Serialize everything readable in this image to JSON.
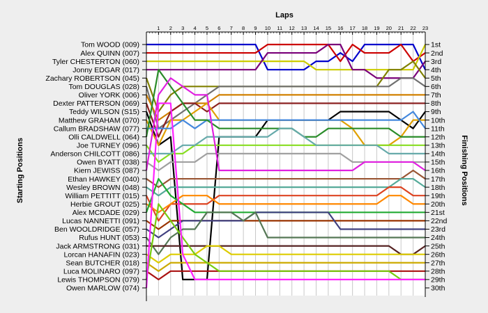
{
  "chart_data": {
    "type": "line",
    "title": "",
    "xlabel": "Laps",
    "ylabel_left": "Starting Positions",
    "ylabel_right": "Finishing Positions",
    "laps": [
      1,
      2,
      3,
      4,
      5,
      6,
      7,
      8,
      9,
      10,
      11,
      12,
      13,
      14,
      15,
      16,
      17,
      18,
      19,
      20,
      21,
      22,
      23
    ],
    "drivers": [
      "Tom WOOD (009)",
      "Alex QUINN (007)",
      "Tyler CHESTERTON (060)",
      "Jonny EDGAR (017)",
      "Zachary ROBERTSON (045)",
      "Tom DOUGLAS (028)",
      "Oliver YORK (006)",
      "Dexter PATTERSON (069)",
      "Teddy WILSON (S15)",
      "Matthew GRAHAM (070)",
      "Callum BRADSHAW (077)",
      "Olli CALDWELL (064)",
      "Joe TURNEY (096)",
      "Anderson CHILCOTT (086)",
      "Owen BYATT (038)",
      "Kiern JEWISS (087)",
      "Ethan HAWKEY (040)",
      "Wesley BROWN (048)",
      "William PETTITT (015)",
      "Herbie GROUT (025)",
      "Alex MCDADE (029)",
      "Lucas NANNETTI (091)",
      "Ben WOOLDRIDGE (057)",
      "Rufus HUNT (053)",
      "Jack ARMSTRONG (031)",
      "Lorcan HANAFIN (023)",
      "Sean BUTCHER (018)",
      "Luca MOLINARO (097)",
      "Lewis THOMPSON (079)",
      "Owen MARLOW (074)"
    ],
    "finishing_labels": [
      "1st",
      "2nd",
      "3rd",
      "4th",
      "5th",
      "6th",
      "7th",
      "8th",
      "9th",
      "10th",
      "11th",
      "12th",
      "13th",
      "14th",
      "15th",
      "16th",
      "17th",
      "18th",
      "19th",
      "20th",
      "21st",
      "22nd",
      "23rd",
      "24th",
      "25th",
      "26th",
      "27th",
      "28th",
      "29th",
      "30th"
    ],
    "series": [
      {
        "color": "#0000cc",
        "positions": [
          1,
          1,
          1,
          1,
          1,
          1,
          1,
          1,
          1,
          4,
          4,
          4,
          4,
          3,
          3,
          2,
          3,
          1,
          1,
          1,
          1,
          1,
          4
        ]
      },
      {
        "color": "#cc0000",
        "positions": [
          2,
          2,
          2,
          2,
          2,
          2,
          2,
          2,
          2,
          1,
          1,
          1,
          1,
          1,
          1,
          3,
          1,
          2,
          2,
          2,
          1,
          3,
          2
        ]
      },
      {
        "color": "#cccc00",
        "positions": [
          3,
          3,
          3,
          3,
          3,
          3,
          3,
          3,
          3,
          3,
          3,
          3,
          3,
          4,
          4,
          4,
          4,
          4,
          4,
          4,
          4,
          4,
          1
        ]
      },
      {
        "color": "#7a007a",
        "positions": [
          4,
          4,
          4,
          4,
          4,
          4,
          4,
          4,
          4,
          2,
          2,
          2,
          2,
          2,
          1,
          1,
          4,
          4,
          5,
          5,
          5,
          5,
          3
        ]
      },
      {
        "color": "#808000",
        "positions": [
          9,
          7,
          6,
          6,
          6,
          6,
          6,
          6,
          6,
          6,
          6,
          6,
          6,
          6,
          6,
          6,
          6,
          6,
          6,
          4,
          4,
          3,
          5
        ]
      },
      {
        "color": "#707070",
        "positions": [
          11,
          10,
          9,
          8,
          7,
          6,
          6,
          6,
          6,
          6,
          6,
          6,
          6,
          6,
          6,
          6,
          6,
          6,
          6,
          6,
          5,
          5,
          6
        ]
      },
      {
        "color": "#d08000",
        "positions": [
          10,
          9,
          8,
          8,
          8,
          7,
          7,
          7,
          7,
          7,
          7,
          7,
          7,
          7,
          7,
          7,
          7,
          7,
          7,
          7,
          7,
          7,
          7
        ]
      },
      {
        "color": "#8b2020",
        "positions": [
          12,
          9,
          8,
          8,
          9,
          8,
          8,
          8,
          8,
          8,
          8,
          8,
          8,
          8,
          8,
          8,
          8,
          8,
          8,
          8,
          8,
          8,
          8
        ]
      },
      {
        "color": "#000000",
        "positions": [
          13,
          12,
          29,
          29,
          29,
          12,
          12,
          12,
          12,
          10,
          10,
          10,
          10,
          10,
          10,
          9,
          9,
          9,
          9,
          9,
          10,
          11,
          9
        ]
      },
      {
        "color": "#e0a000",
        "positions": [
          13,
          10,
          10,
          9,
          8,
          10,
          10,
          10,
          10,
          10,
          10,
          10,
          10,
          10,
          10,
          10,
          11,
          13,
          13,
          13,
          12,
          10,
          10
        ]
      },
      {
        "color": "#4488dd",
        "positions": [
          11,
          11,
          10,
          11,
          10,
          10,
          10,
          10,
          10,
          10,
          10,
          10,
          10,
          10,
          10,
          10,
          10,
          10,
          10,
          10,
          10,
          9,
          11
        ]
      },
      {
        "color": "#2a8c2a",
        "positions": [
          4,
          6,
          8,
          10,
          10,
          11,
          11,
          11,
          11,
          11,
          11,
          11,
          12,
          12,
          11,
          11,
          11,
          11,
          11,
          11,
          12,
          12,
          12
        ]
      },
      {
        "color": "#88dd22",
        "positions": [
          15,
          14,
          14,
          13,
          13,
          13,
          13,
          13,
          13,
          13,
          13,
          13,
          13,
          13,
          13,
          13,
          13,
          13,
          13,
          13,
          13,
          13,
          13
        ]
      },
      {
        "color": "#66aaaa",
        "positions": [
          14,
          14,
          13,
          13,
          12,
          12,
          12,
          12,
          12,
          12,
          11,
          11,
          12,
          13,
          13,
          13,
          13,
          13,
          13,
          14,
          14,
          14,
          14
        ]
      },
      {
        "color": "#a0a0a0",
        "positions": [
          16,
          15,
          15,
          15,
          14,
          14,
          14,
          14,
          14,
          14,
          14,
          14,
          14,
          14,
          14,
          14,
          15,
          15,
          15,
          15,
          15,
          15,
          15
        ]
      },
      {
        "color": "#e020e0",
        "positions": [
          7,
          5,
          6,
          7,
          7,
          16,
          16,
          16,
          16,
          16,
          16,
          16,
          16,
          16,
          16,
          16,
          16,
          15,
          15,
          15,
          15,
          15,
          16
        ]
      },
      {
        "color": "#995533",
        "positions": [
          18,
          17,
          17,
          17,
          17,
          17,
          17,
          17,
          17,
          17,
          17,
          17,
          17,
          17,
          17,
          17,
          17,
          17,
          17,
          17,
          17,
          16,
          17
        ]
      },
      {
        "color": "#55aa99",
        "positions": [
          19,
          18,
          18,
          18,
          18,
          18,
          18,
          18,
          18,
          18,
          18,
          18,
          18,
          18,
          18,
          18,
          18,
          18,
          18,
          18,
          17,
          17,
          18
        ]
      },
      {
        "color": "#dd4422",
        "positions": [
          22,
          20,
          20,
          20,
          20,
          19,
          19,
          19,
          19,
          19,
          19,
          19,
          19,
          19,
          19,
          19,
          19,
          19,
          19,
          18,
          18,
          19,
          19
        ]
      },
      {
        "color": "#ff8800",
        "positions": [
          21,
          20,
          19,
          19,
          19,
          20,
          20,
          20,
          20,
          20,
          20,
          20,
          20,
          20,
          20,
          20,
          20,
          20,
          20,
          19,
          19,
          20,
          20
        ]
      },
      {
        "color": "#22aa33",
        "positions": [
          17,
          19,
          20,
          21,
          21,
          21,
          21,
          21,
          21,
          21,
          21,
          21,
          21,
          21,
          21,
          21,
          21,
          21,
          21,
          21,
          21,
          21,
          21
        ]
      },
      {
        "color": "#993300",
        "positions": [
          23,
          22,
          22,
          22,
          22,
          22,
          22,
          22,
          22,
          22,
          22,
          22,
          22,
          22,
          22,
          22,
          22,
          22,
          22,
          22,
          22,
          22,
          22
        ]
      },
      {
        "color": "#404080",
        "positions": [
          24,
          23,
          22,
          22,
          22,
          22,
          22,
          22,
          21,
          21,
          21,
          21,
          21,
          21,
          21,
          23,
          23,
          23,
          23,
          23,
          23,
          23,
          23
        ]
      },
      {
        "color": "#557755",
        "positions": [
          26,
          24,
          23,
          23,
          21,
          21,
          21,
          22,
          21,
          24,
          24,
          24,
          24,
          24,
          24,
          24,
          24,
          24,
          24,
          24,
          24,
          24,
          24
        ]
      },
      {
        "color": "#552222",
        "positions": [
          25,
          25,
          25,
          25,
          25,
          25,
          25,
          25,
          25,
          25,
          25,
          25,
          25,
          25,
          25,
          25,
          25,
          25,
          25,
          25,
          26,
          26,
          25
        ]
      },
      {
        "color": "#ddcc00",
        "positions": [
          27,
          26,
          26,
          26,
          25,
          25,
          26,
          26,
          26,
          26,
          26,
          26,
          26,
          26,
          26,
          26,
          26,
          26,
          26,
          26,
          26,
          26,
          26
        ]
      },
      {
        "color": "#ccaa00",
        "positions": [
          28,
          27,
          27,
          27,
          27,
          27,
          27,
          27,
          27,
          27,
          27,
          27,
          27,
          27,
          27,
          27,
          27,
          27,
          27,
          27,
          27,
          27,
          27
        ]
      },
      {
        "color": "#aa1111",
        "positions": [
          29,
          28,
          28,
          28,
          28,
          28,
          28,
          28,
          28,
          28,
          28,
          28,
          28,
          28,
          28,
          28,
          28,
          28,
          28,
          28,
          28,
          28,
          28
        ]
      },
      {
        "color": "#77cc11",
        "positions": [
          20,
          22,
          24,
          26,
          27,
          28,
          28,
          28,
          28,
          28,
          28,
          28,
          28,
          28,
          28,
          28,
          28,
          28,
          28,
          28,
          29,
          29,
          29
        ]
      },
      {
        "color": "#ff22ff",
        "positions": [
          8,
          8,
          26,
          29,
          29,
          29,
          29,
          29,
          29,
          29,
          29,
          29,
          29,
          29,
          29,
          29,
          29,
          29,
          29,
          29,
          29,
          29,
          29
        ]
      }
    ]
  }
}
